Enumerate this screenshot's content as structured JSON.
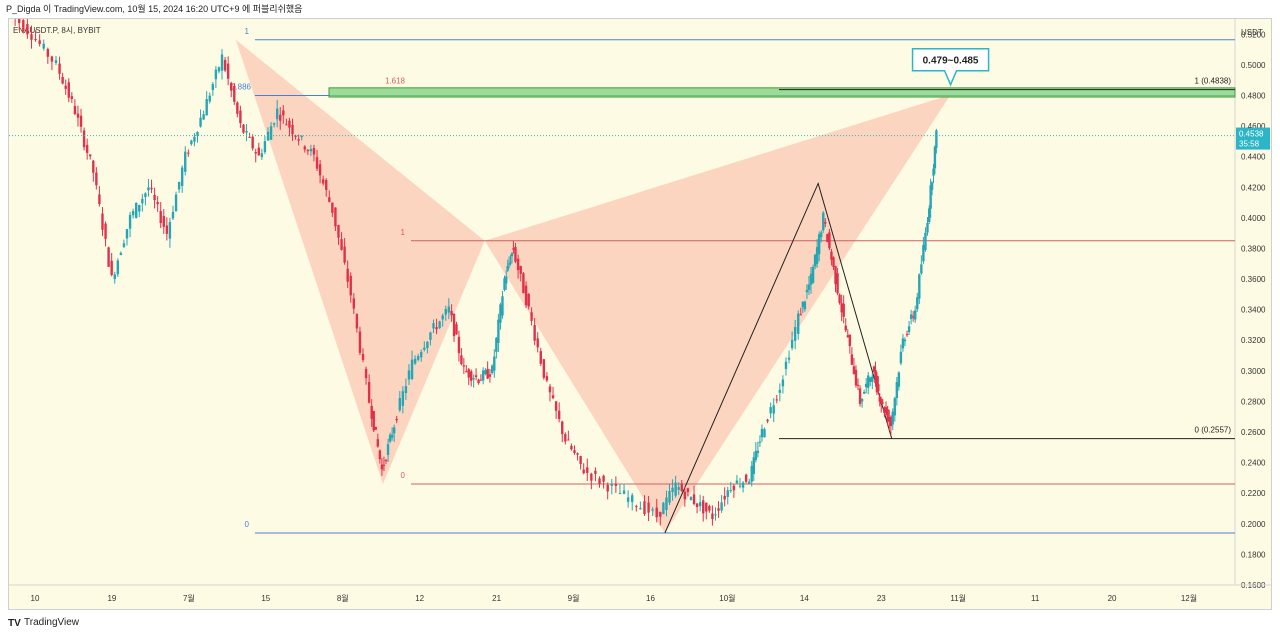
{
  "header": {
    "snapshot_text": "P_Digda 이 TradingView.com, 10월 15, 2024 16:20 UTC+9 에 퍼블리쉬했음"
  },
  "chart": {
    "symbol_line": "ENAUSDT.P, 8시, BYBIT",
    "currency": "USDT",
    "last_price": "0.4538",
    "countdown": "35:58",
    "callout": "0.479~0.485",
    "colors": {
      "up": "#26a6b5",
      "down": "#e0304a",
      "pattern_fill": "#f9c8b3",
      "zone": "#7bd27a",
      "accent": "#2bb5c6"
    }
  },
  "chart_data": {
    "type": "candlestick",
    "y_axis": {
      "ticks": [
        "0.5200",
        "0.5000",
        "0.4800",
        "0.4600",
        "0.4400",
        "0.4200",
        "0.4000",
        "0.3800",
        "0.3600",
        "0.3400",
        "0.3200",
        "0.3000",
        "0.2800",
        "0.2600",
        "0.2400",
        "0.2200",
        "0.2000",
        "0.1800",
        "0.1600"
      ],
      "range": [
        0.16,
        0.53
      ]
    },
    "x_axis": {
      "ticks": [
        "10",
        "19",
        "7월",
        "15",
        "8월",
        "12",
        "21",
        "9월",
        "16",
        "10월",
        "14",
        "23",
        "11월",
        "11",
        "20",
        "12월"
      ]
    },
    "levels": {
      "fib1": {
        "labels": [
          "1",
          "0.886",
          "0"
        ],
        "values": [
          0.5164,
          0.48,
          0.194
        ]
      },
      "fib2": {
        "labels": [
          "1.618",
          "1",
          "0"
        ],
        "values": [
          0.4838,
          0.385,
          0.226
        ]
      },
      "fib3": {
        "labels": [
          "1 (0.4838)",
          "0 (0.2557)"
        ],
        "values": [
          0.4838,
          0.2557
        ]
      }
    },
    "harmonic_points": [
      {
        "t": 0.185,
        "p": 0.5164
      },
      {
        "t": 0.305,
        "p": 0.226
      },
      {
        "t": 0.388,
        "p": 0.385
      },
      {
        "t": 0.535,
        "p": 0.194
      },
      {
        "t": 0.768,
        "p": 0.4805
      }
    ],
    "abcd_points": [
      {
        "t": 0.535,
        "p": 0.194
      },
      {
        "t": 0.66,
        "p": 0.4225
      },
      {
        "t": 0.72,
        "p": 0.2557
      }
    ],
    "price_path": [
      [
        0.0,
        0.536
      ],
      [
        0.02,
        0.52
      ],
      [
        0.04,
        0.5
      ],
      [
        0.055,
        0.47
      ],
      [
        0.07,
        0.43
      ],
      [
        0.085,
        0.36
      ],
      [
        0.1,
        0.4
      ],
      [
        0.115,
        0.42
      ],
      [
        0.13,
        0.39
      ],
      [
        0.145,
        0.44
      ],
      [
        0.16,
        0.47
      ],
      [
        0.175,
        0.505
      ],
      [
        0.19,
        0.46
      ],
      [
        0.205,
        0.44
      ],
      [
        0.22,
        0.47
      ],
      [
        0.235,
        0.455
      ],
      [
        0.25,
        0.44
      ],
      [
        0.265,
        0.405
      ],
      [
        0.28,
        0.35
      ],
      [
        0.295,
        0.28
      ],
      [
        0.305,
        0.235
      ],
      [
        0.315,
        0.265
      ],
      [
        0.33,
        0.305
      ],
      [
        0.345,
        0.325
      ],
      [
        0.36,
        0.34
      ],
      [
        0.372,
        0.3
      ],
      [
        0.384,
        0.295
      ],
      [
        0.395,
        0.3
      ],
      [
        0.405,
        0.36
      ],
      [
        0.412,
        0.38
      ],
      [
        0.425,
        0.34
      ],
      [
        0.44,
        0.29
      ],
      [
        0.455,
        0.255
      ],
      [
        0.47,
        0.235
      ],
      [
        0.49,
        0.225
      ],
      [
        0.51,
        0.215
      ],
      [
        0.53,
        0.205
      ],
      [
        0.545,
        0.225
      ],
      [
        0.56,
        0.215
      ],
      [
        0.575,
        0.205
      ],
      [
        0.59,
        0.225
      ],
      [
        0.605,
        0.23
      ],
      [
        0.615,
        0.26
      ],
      [
        0.63,
        0.29
      ],
      [
        0.645,
        0.335
      ],
      [
        0.655,
        0.36
      ],
      [
        0.665,
        0.4
      ],
      [
        0.675,
        0.36
      ],
      [
        0.685,
        0.32
      ],
      [
        0.695,
        0.28
      ],
      [
        0.705,
        0.3
      ],
      [
        0.712,
        0.28
      ],
      [
        0.72,
        0.265
      ],
      [
        0.73,
        0.32
      ],
      [
        0.74,
        0.34
      ],
      [
        0.75,
        0.4
      ],
      [
        0.757,
        0.4538
      ]
    ],
    "projection_zone": [
      0.479,
      0.485
    ]
  },
  "footer": {
    "brand": "TradingView"
  }
}
